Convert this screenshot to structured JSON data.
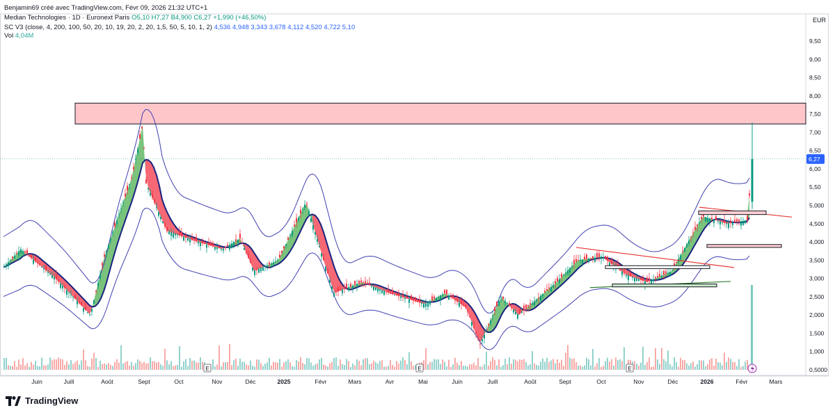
{
  "header": {
    "author_line": "Benjamin69 créé avec TradingView.com, Févr 09, 2026 21:32 UTC+1",
    "symbol_line": "Median Technologies · 1D · Euronext Paris",
    "ohlc": "O5,10 H7,27 B4,900 C6,27 +1,990 (+46,50%)",
    "indicator_label": "SC V3 (close, 4, 200, 100, 50, 20, 10, 19, 20, 2, 20, 1,5, 50, 5, 10, 1, 2)",
    "indicator_values": "4,536  4,948  3,343  3,678  4,112  4,520  4,722  5,10",
    "volume_label": "Vol",
    "volume_value": "4,04M"
  },
  "currency": "EUR",
  "last_price_label": "6,27",
  "footer_brand": "TradingView",
  "colors": {
    "up_fill": "#4caf50",
    "down_fill": "#f23645",
    "candle_up": "#089981",
    "candle_down": "#f23645",
    "band": "#3f3fb0",
    "ma": "#1a237e",
    "zone_fill": "#ffb3b8",
    "trend_red": "#e53935",
    "trend_green": "#2e7d32",
    "price_badge": "#2962ff"
  },
  "chart_data": {
    "type": "candlestick",
    "ylim": [
      0.4,
      9.9
    ],
    "y_ticks": [
      "9,50",
      "9,00",
      "8,50",
      "8,00",
      "7,50",
      "7,00",
      "6,50",
      "6,00",
      "5,50",
      "5,000",
      "4,500",
      "4,000",
      "3,500",
      "3,000",
      "2,500",
      "2,000",
      "1,500",
      "1,000",
      "0,5000"
    ],
    "y_tick_values": [
      9.5,
      9.0,
      8.5,
      8.0,
      7.5,
      7.0,
      6.5,
      6.0,
      5.5,
      5.0,
      4.5,
      4.0,
      3.5,
      3.0,
      2.5,
      2.0,
      1.5,
      1.0,
      0.5
    ],
    "x_ticks": [
      "Juin",
      "Juill",
      "Août",
      "Sept",
      "Oct",
      "Nov",
      "Déc",
      "2025",
      "Févr",
      "Mars",
      "Avr",
      "Mai",
      "Juin",
      "Juill",
      "Août",
      "Sept",
      "Oct",
      "Nov",
      "Déc",
      "2026",
      "Févr",
      "Mars"
    ],
    "close_series": [
      {
        "date": "2024-05",
        "close": 3.3
      },
      {
        "date": "2024-06",
        "close": 3.8
      },
      {
        "date": "2024-07",
        "close": 3.4
      },
      {
        "date": "2024-07-20",
        "close": 3.0
      },
      {
        "date": "2024-08-01",
        "close": 2.0
      },
      {
        "date": "2024-08-15",
        "close": 3.6
      },
      {
        "date": "2024-09-01",
        "close": 5.8
      },
      {
        "date": "2024-09-10",
        "close": 7.2
      },
      {
        "date": "2024-09-20",
        "close": 5.6
      },
      {
        "date": "2024-10-01",
        "close": 4.3
      },
      {
        "date": "2024-10-20",
        "close": 4.0
      },
      {
        "date": "2024-11-10",
        "close": 3.8
      },
      {
        "date": "2024-12-01",
        "close": 4.1
      },
      {
        "date": "2024-12-15",
        "close": 3.2
      },
      {
        "date": "2025-01-01",
        "close": 3.5
      },
      {
        "date": "2025-01-20",
        "close": 5.1
      },
      {
        "date": "2025-02-05",
        "close": 3.5
      },
      {
        "date": "2025-02-20",
        "close": 2.6
      },
      {
        "date": "2025-03-15",
        "close": 2.9
      },
      {
        "date": "2025-04-10",
        "close": 2.6
      },
      {
        "date": "2025-05-01",
        "close": 2.3
      },
      {
        "date": "2025-05-20",
        "close": 2.6
      },
      {
        "date": "2025-06-10",
        "close": 2.2
      },
      {
        "date": "2025-06-28",
        "close": 1.2
      },
      {
        "date": "2025-07-20",
        "close": 2.5
      },
      {
        "date": "2025-08-10",
        "close": 2.0
      },
      {
        "date": "2025-09-01",
        "close": 2.9
      },
      {
        "date": "2025-09-20",
        "close": 3.5
      },
      {
        "date": "2025-10-05",
        "close": 3.6
      },
      {
        "date": "2025-10-25",
        "close": 3.1
      },
      {
        "date": "2025-11-15",
        "close": 2.9
      },
      {
        "date": "2025-12-05",
        "close": 3.2
      },
      {
        "date": "2025-12-20",
        "close": 4.7
      },
      {
        "date": "2026-01-15",
        "close": 4.5
      },
      {
        "date": "2026-02-05",
        "close": 4.6
      },
      {
        "date": "2026-02-09",
        "close": 6.27
      }
    ],
    "last_close": 6.27,
    "last_high": 7.27,
    "resistance_zone": [
      7.23,
      7.8
    ],
    "volume_last": "4,04M"
  }
}
